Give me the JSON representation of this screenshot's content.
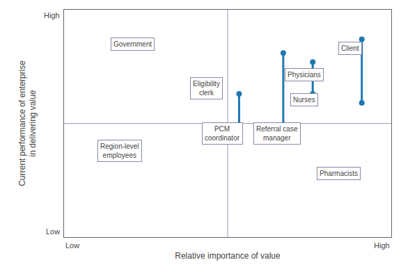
{
  "chart_data": {
    "type": "quadrant",
    "xlabel": "Relative importance of value",
    "ylabel": "Current performance of enterprise\nin delivering value",
    "xlim": [
      0,
      10
    ],
    "ylim": [
      0,
      10
    ],
    "tick_labels": false,
    "grid": false,
    "quadrant_x": 5.0,
    "quadrant_y": 5.0,
    "x_end_labels": [
      "Low",
      "High"
    ],
    "y_end_labels": [
      "Low",
      "High"
    ],
    "dumbbells": [
      {
        "x": 5.35,
        "y_top": 6.3,
        "y_bottom": 4.95
      },
      {
        "x": 6.7,
        "y_top": 8.1,
        "y_bottom": 4.95
      },
      {
        "x": 7.6,
        "y_top": 7.7,
        "y_bottom": 6.3
      },
      {
        "x": 9.1,
        "y_top": 8.7,
        "y_bottom": 5.9
      }
    ],
    "labels": [
      {
        "text": "Government",
        "x": 2.1,
        "y": 8.5
      },
      {
        "text": "Region-level\nemployees",
        "x": 1.7,
        "y": 3.8
      },
      {
        "text": "Eligibility\nclerk",
        "x": 4.35,
        "y": 6.55
      },
      {
        "text": "PCM\ncoordinator",
        "x": 4.85,
        "y": 4.55
      },
      {
        "text": "Referral case\nmanager",
        "x": 6.5,
        "y": 4.55
      },
      {
        "text": "Physicians",
        "x": 7.35,
        "y": 7.15
      },
      {
        "text": "Nurses",
        "x": 7.35,
        "y": 6.05
      },
      {
        "text": "Client",
        "x": 8.75,
        "y": 8.3
      },
      {
        "text": "Pharmacists",
        "x": 8.4,
        "y": 2.8
      }
    ]
  }
}
